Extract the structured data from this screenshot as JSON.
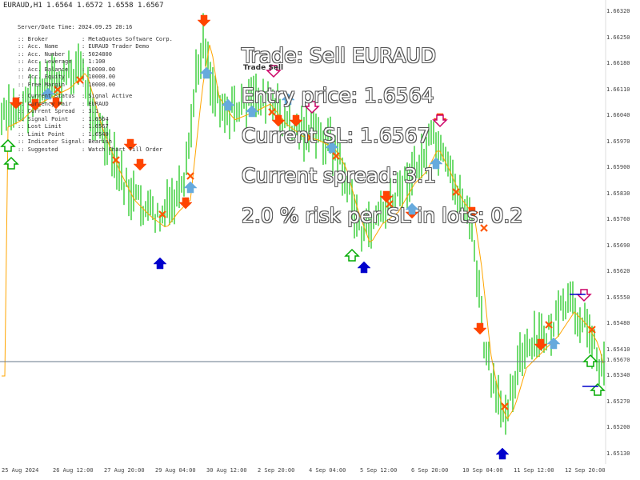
{
  "symbol_header": "EURAUD,H1 1.6564 1.6572 1.6558 1.6567",
  "signal_marker": "Trade Sell",
  "overlay": {
    "trade": "Trade: Sell EURAUD",
    "entry": "Entry price: 1.6564",
    "current_sl": "Current SL: 1.6567",
    "spread": "Current spread: 3.1",
    "risk": "2.0 % risk per SL in lots: 0.2"
  },
  "info_panel": {
    "server_time": "Server/Date Time: 2024.09.25 20:16",
    "rows_a": [
      {
        "k": ":: Broker",
        "v": ": MetaQuotes Software Corp."
      },
      {
        "k": ":: Acc. Name",
        "v": ": EURAUD Trader Demo"
      },
      {
        "k": ":: Acc. Number",
        "v": ": 5024800"
      },
      {
        "k": ":: Acc. Leverage",
        "v": ": 1:100"
      },
      {
        "k": ":: Acc. Balance",
        "v": ": 10000.00"
      },
      {
        "k": ":: Acc. Equity",
        "v": ": 10000.00"
      },
      {
        "k": ":: Free Margin",
        "v": ": 10000.00"
      }
    ],
    "rows_b": [
      {
        "k": ":: Current Status",
        "v": ": Signal Active"
      },
      {
        "k": ":: Currency Pair",
        "v": ": EURAUD"
      },
      {
        "k": ":: Current Spread",
        "v": ": 3.1"
      },
      {
        "k": ":: Signal Point",
        "v": ": 1.6564"
      },
      {
        "k": ":: Lost Limit",
        "v": ": 1.6567"
      },
      {
        "k": ":: Limit Point",
        "v": ": 1.6540"
      },
      {
        "k": ":: Indicator Signal",
        "v": ": Bearish"
      },
      {
        "k": ":: Suggested",
        "v": ": Watch Chart Till Order"
      }
    ]
  },
  "price_labels": [
    "1.66320",
    "1.66250",
    "1.66180",
    "1.66110",
    "1.66040",
    "1.65970",
    "1.65900",
    "1.65830",
    "1.65760",
    "1.65690",
    "1.65620",
    "1.65550",
    "1.65480",
    "1.65410",
    "1.65340",
    "1.65270",
    "1.65200",
    "1.65130"
  ],
  "current_price_label": "1.65670",
  "time_labels": [
    "25 Aug 2024",
    "26 Aug 12:00",
    "27 Aug 20:00",
    "29 Aug 04:00",
    "30 Aug 12:00",
    "2 Sep 20:00",
    "4 Sep 04:00",
    "5 Sep 12:00",
    "6 Sep 20:00",
    "10 Sep 04:00",
    "11 Sep 12:00",
    "12 Sep 20:00"
  ],
  "colors": {
    "candle": "#33cc33",
    "ma": "#ffa500",
    "arrow_sell": "#ff4400",
    "arrow_buy_light": "#66aadd",
    "arrow_buy_dark": "#0000cc",
    "arrow_outline_green": "#00aa00",
    "arrow_outline_magenta": "#cc0066",
    "cross": "#ff5500",
    "price_line": "#667788"
  }
}
